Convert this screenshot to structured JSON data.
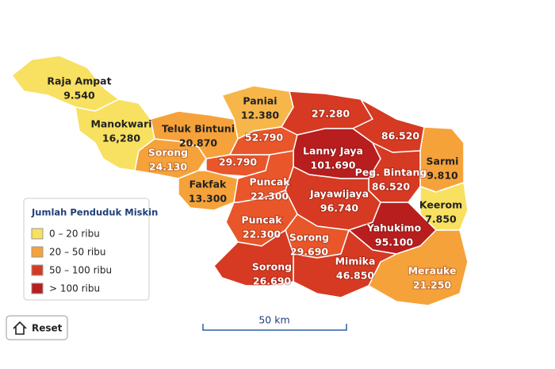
{
  "map": {
    "regions": [
      {
        "name": "Raja Ampat",
        "value": "9.540"
      },
      {
        "name": "Manokwari",
        "value": "16,280"
      },
      {
        "name": "Paniai",
        "value": "12.380"
      },
      {
        "name": "Teluk Bintuni",
        "value": "20.870"
      },
      {
        "name": "Sorong",
        "value": "24.130"
      },
      {
        "name": "Fakfak",
        "value": "13.300"
      },
      {
        "name": "Puncak",
        "value": "22.300"
      },
      {
        "name": "Lanny Jaya",
        "value": "101.690"
      },
      {
        "name": "Peg. Bintang",
        "value": "86.520"
      },
      {
        "name": "Sarmi",
        "value": "9.810"
      },
      {
        "name": "Keerom",
        "value": "7.850"
      },
      {
        "name": "Jayawijaya",
        "value": "96.740"
      },
      {
        "name": "Puncak",
        "value": "22.300"
      },
      {
        "name": "Sorong",
        "value": "29.690"
      },
      {
        "name": "Yahukimo",
        "value": "95.100"
      },
      {
        "name": "Mimika",
        "value": "46.850"
      },
      {
        "name": "Sorong",
        "value": "26.690"
      },
      {
        "name": "Merauke",
        "value": "21.250"
      },
      {
        "value": "27.280"
      },
      {
        "value": "52.790"
      },
      {
        "value": "86.520"
      },
      {
        "value": "29.790"
      }
    ],
    "legend": {
      "title": "Jumlah Penduduk Miskin",
      "items": [
        "0 – 20 ribu",
        "20 – 50 ribu",
        "50 – 100 ribu",
        "> 100 ribu"
      ]
    },
    "scale": "50 km",
    "reset": "Reset"
  }
}
